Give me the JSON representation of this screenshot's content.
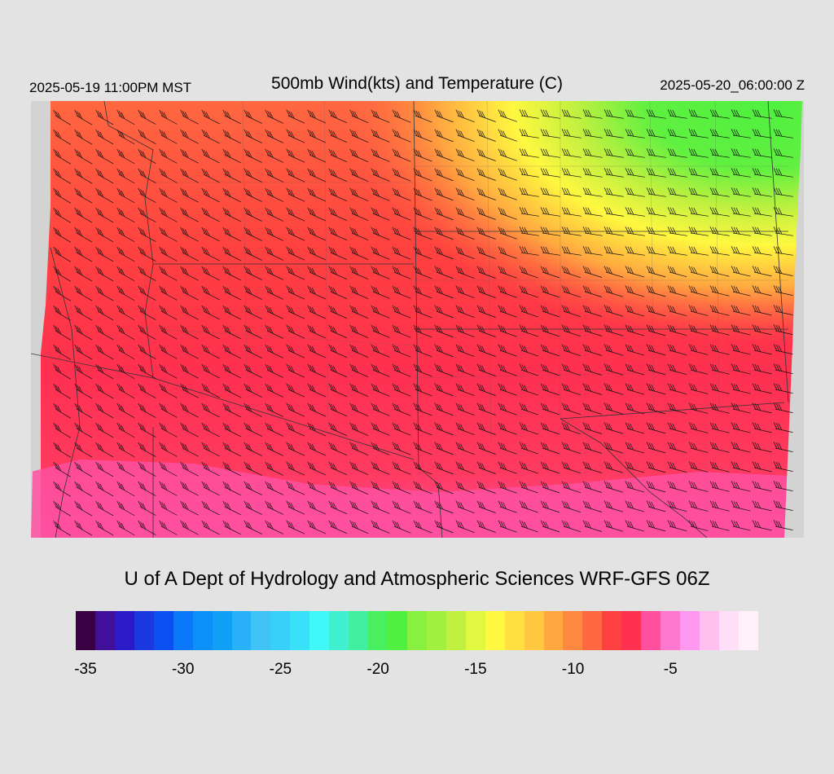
{
  "header": {
    "init_time": "2025-05-19 11:00PM MST",
    "title": "500mb Wind(kts) and Temperature (C)",
    "valid_time": "2025-05-20_06:00:00 Z"
  },
  "footer": {
    "credit": "U of A Dept of Hydrology and Atmospheric Sciences WRF-GFS 06Z"
  },
  "colorbar": {
    "colors": [
      "#3a0044",
      "#40109a",
      "#2a1ac8",
      "#1a3ae0",
      "#0a50f0",
      "#0a78f8",
      "#0a90f8",
      "#10a0f8",
      "#28b0f8",
      "#40c4f8",
      "#38d0f8",
      "#38e0f8",
      "#40f8f8",
      "#40f0d0",
      "#40f0a0",
      "#48f060",
      "#50f040",
      "#88f040",
      "#a0f040",
      "#c0f040",
      "#e0f840",
      "#fff840",
      "#ffe040",
      "#ffc840",
      "#ffa840",
      "#ff8840",
      "#ff6840",
      "#ff4040",
      "#ff3050",
      "#ff50a0",
      "#ff78d0",
      "#ff98f0",
      "#ffc0f0",
      "#ffe0f8",
      "#fff0fa"
    ],
    "tick_labels": [
      "-35",
      "-30",
      "-25",
      "-20",
      "-15",
      "-10",
      "-5"
    ],
    "tick_values": [
      -35,
      -30,
      -25,
      -20,
      -15,
      -10,
      -5
    ],
    "min": -35.5,
    "max": -1
  },
  "map": {
    "field": "500mb temperature (C)",
    "wind_units": "kts",
    "temperature_colors": {
      "warm_pink": "#ff50a0",
      "red": "#ff3050",
      "red_orange": "#ff4040",
      "orange": "#ff6840",
      "light_orange": "#ff8840",
      "yellow": "#fff840",
      "green": "#50f040"
    }
  }
}
